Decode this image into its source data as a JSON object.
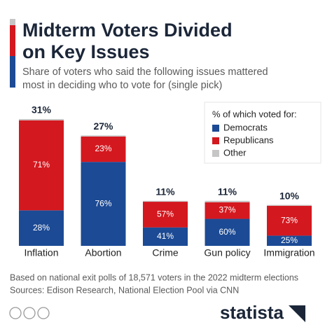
{
  "chart_data": {
    "type": "bar",
    "title": [
      "Midterm Voters Divided",
      "on Key Issues"
    ],
    "subtitle": [
      "Share of voters who said the following issues mattered",
      "most in deciding who to vote for (single pick)"
    ],
    "legend_title": "% of which voted for:",
    "categories": [
      "Inflation",
      "Abortion",
      "Crime",
      "Gun policy",
      "Immigration"
    ],
    "shares": [
      31,
      27,
      11,
      11,
      10
    ],
    "share_labels": [
      "31%",
      "27%",
      "11%",
      "11%",
      "10%"
    ],
    "series": [
      {
        "name": "Democrats",
        "color": "#1c4a94",
        "values": [
          28,
          76,
          41,
          60,
          25
        ],
        "value_labels": [
          "28%",
          "76%",
          "41%",
          "60%",
          "25%"
        ]
      },
      {
        "name": "Republicans",
        "color": "#d4181f",
        "values": [
          71,
          23,
          57,
          37,
          73
        ],
        "value_labels": [
          "71%",
          "23%",
          "57%",
          "37%",
          "73%"
        ]
      },
      {
        "name": "Other",
        "color": "#c6c6c6",
        "values": [
          1,
          1,
          2,
          3,
          2
        ]
      }
    ],
    "source": [
      "Based on national exit polls of 18,571 voters in the 2022 midterm elections",
      "Sources: Edison Research, National Election Pool via CNN"
    ],
    "brand": "statista"
  }
}
